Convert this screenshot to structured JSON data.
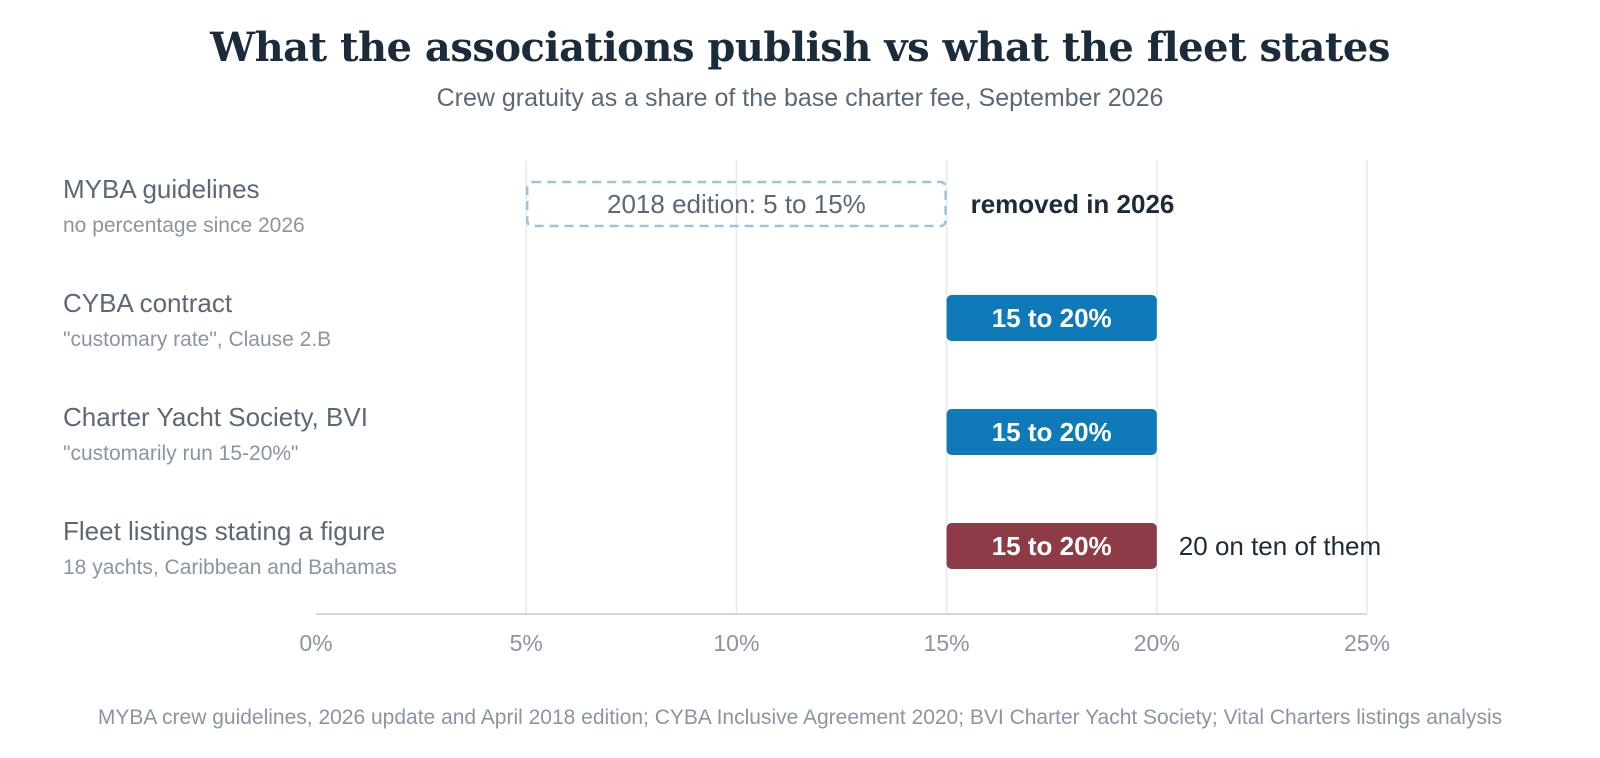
{
  "title": "What the associations publish vs what the fleet states",
  "subtitle": "Crew gratuity as a share of the base charter fee, September 2026",
  "source": "MYBA crew guidelines, 2026 update and April 2018 edition; CYBA Inclusive Agreement 2020; BVI Charter Yacht Society; Vital Charters listings analysis",
  "chart_data": {
    "type": "bar",
    "orientation": "horizontal-range",
    "xlim": [
      0,
      25
    ],
    "x_ticks": [
      0,
      5,
      10,
      15,
      20,
      25
    ],
    "x_tick_labels": [
      "0%",
      "5%",
      "10%",
      "15%",
      "20%",
      "25%"
    ],
    "grid": true,
    "rows": [
      {
        "label": "MYBA guidelines",
        "sublabel": "no percentage since 2026",
        "start": 5,
        "end": 15,
        "bar_label": "2018 edition: 5 to 15%",
        "style": "dashed-outline",
        "color": "#9cc3d8",
        "annotation": "removed in 2026",
        "annotation_bold": true
      },
      {
        "label": "CYBA contract",
        "sublabel": "\"customary rate\", Clause 2.B",
        "start": 15,
        "end": 20,
        "bar_label": "15 to 20%",
        "style": "solid",
        "color": "#0f7ab8",
        "annotation": "",
        "annotation_bold": false
      },
      {
        "label": "Charter Yacht Society, BVI",
        "sublabel": "\"customarily run 15-20%\"",
        "start": 15,
        "end": 20,
        "bar_label": "15 to 20%",
        "style": "solid",
        "color": "#0f7ab8",
        "annotation": "",
        "annotation_bold": false
      },
      {
        "label": "Fleet listings stating a figure",
        "sublabel": "18 yachts, Caribbean and Bahamas",
        "start": 15,
        "end": 20,
        "bar_label": "15 to 20%",
        "style": "solid",
        "color": "#8c3b47",
        "annotation": "20 on ten of them",
        "annotation_bold": false
      }
    ]
  }
}
